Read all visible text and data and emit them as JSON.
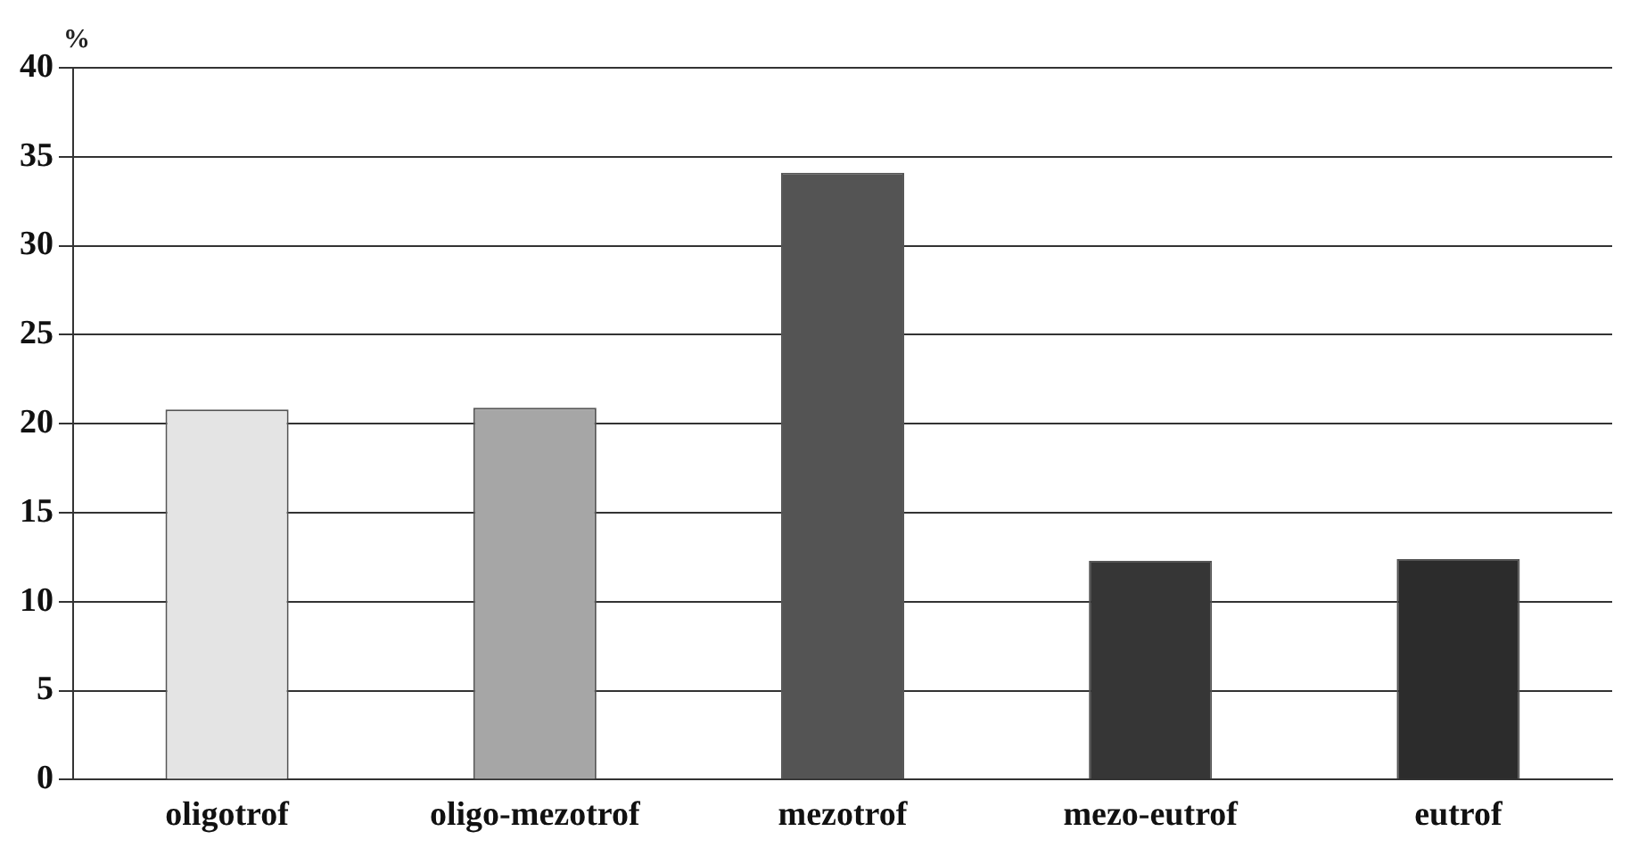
{
  "chart_data": {
    "type": "bar",
    "ylabel": "%",
    "categories": [
      "oligotrof",
      "oligo-mezotrof",
      "mezotrof",
      "mezo-eutrof",
      "eutrof"
    ],
    "values": [
      20.8,
      20.9,
      34.1,
      12.3,
      12.4
    ],
    "colors": [
      "#e4e4e4",
      "#a6a6a6",
      "#545454",
      "#363636",
      "#2c2c2c"
    ],
    "ylim": [
      0,
      40
    ],
    "yticks": [
      0,
      5,
      10,
      15,
      20,
      25,
      30,
      35,
      40
    ],
    "grid": "y",
    "legend": false
  }
}
